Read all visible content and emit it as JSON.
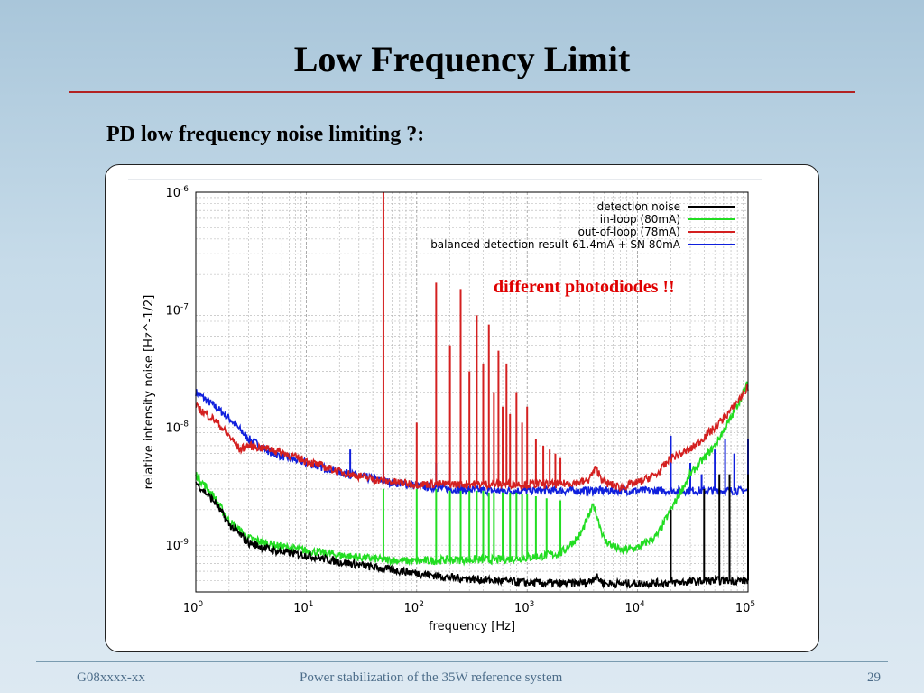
{
  "slide": {
    "title": "Low Frequency Limit",
    "subtitle": "PD low frequency noise limiting ?:",
    "annotation": "different photodiodes !!",
    "footer_left": "G08xxxx-xx",
    "footer_center": "Power stabilization of the 35W reference system",
    "footer_page": "29"
  },
  "chart_data": {
    "type": "line",
    "xlabel": "frequency [Hz]",
    "ylabel": "relative intensity noise [Hz^-1/2]",
    "x_scale": "log",
    "y_scale": "log",
    "xlim": [
      1,
      100000
    ],
    "ylim": [
      4e-10,
      1e-06
    ],
    "grid": true,
    "legend_position": "top-right",
    "x_ticks": [
      {
        "value": 1,
        "base": "10",
        "exp": "0"
      },
      {
        "value": 10,
        "base": "10",
        "exp": "1"
      },
      {
        "value": 100,
        "base": "10",
        "exp": "2"
      },
      {
        "value": 1000,
        "base": "10",
        "exp": "3"
      },
      {
        "value": 10000,
        "base": "10",
        "exp": "4"
      },
      {
        "value": 100000,
        "base": "10",
        "exp": "5"
      }
    ],
    "y_ticks": [
      {
        "value": 1e-09,
        "base": "10",
        "exp": "-9"
      },
      {
        "value": 1e-08,
        "base": "10",
        "exp": "-8"
      },
      {
        "value": 1e-07,
        "base": "10",
        "exp": "-7"
      },
      {
        "value": 1e-06,
        "base": "10",
        "exp": "-6"
      }
    ],
    "series": [
      {
        "name": "detection noise",
        "color": "#000000",
        "x": [
          1,
          1.5,
          2,
          3,
          5,
          10,
          20,
          50,
          100,
          200,
          500,
          1000,
          2000,
          3500,
          4200,
          5000,
          10000,
          20000,
          50000,
          100000
        ],
        "y": [
          3.4e-09,
          2.3e-09,
          1.5e-09,
          1.05e-09,
          9e-10,
          8.2e-10,
          7.2e-10,
          6.3e-10,
          5.8e-10,
          5.3e-10,
          5e-10,
          4.8e-10,
          4.7e-10,
          4.8e-10,
          5.4e-10,
          4.7e-10,
          4.7e-10,
          4.8e-10,
          5e-10,
          5e-10
        ],
        "peaks": [
          {
            "x": 20000,
            "y": 2e-09
          },
          {
            "x": 40000,
            "y": 3e-09
          },
          {
            "x": 55000,
            "y": 4e-09
          },
          {
            "x": 68000,
            "y": 4e-09
          },
          {
            "x": 100000,
            "y": 4e-09
          }
        ]
      },
      {
        "name": "in-loop (80mA)",
        "color": "#22dd22",
        "x": [
          1,
          1.5,
          2,
          3,
          5,
          10,
          20,
          50,
          100,
          200,
          500,
          1000,
          2000,
          3000,
          4000,
          5000,
          7000,
          10000,
          15000,
          20000,
          30000,
          50000,
          70000,
          100000
        ],
        "y": [
          4e-09,
          2.5e-09,
          1.6e-09,
          1.15e-09,
          1e-09,
          9e-10,
          8.2e-10,
          7.5e-10,
          7.3e-10,
          7.5e-10,
          7.5e-10,
          7.8e-10,
          8.5e-10,
          1.2e-09,
          2.2e-09,
          1.1e-09,
          9e-10,
          9.5e-10,
          1.2e-09,
          2e-09,
          4e-09,
          7e-09,
          1.2e-08,
          2.4e-08
        ],
        "peaks": [
          {
            "x": 50,
            "y": 3e-09
          },
          {
            "x": 100,
            "y": 3e-09
          },
          {
            "x": 150,
            "y": 3e-09
          },
          {
            "x": 200,
            "y": 2.9e-09
          },
          {
            "x": 250,
            "y": 2.9e-09
          },
          {
            "x": 300,
            "y": 2.9e-09
          },
          {
            "x": 350,
            "y": 2.9e-09
          },
          {
            "x": 400,
            "y": 2.9e-09
          },
          {
            "x": 450,
            "y": 2.8e-09
          },
          {
            "x": 500,
            "y": 2.8e-09
          },
          {
            "x": 600,
            "y": 2.8e-09
          },
          {
            "x": 700,
            "y": 2.8e-09
          },
          {
            "x": 800,
            "y": 2.8e-09
          },
          {
            "x": 900,
            "y": 2.7e-09
          },
          {
            "x": 1000,
            "y": 2.7e-09
          },
          {
            "x": 1200,
            "y": 2.6e-09
          },
          {
            "x": 1500,
            "y": 2.5e-09
          },
          {
            "x": 2000,
            "y": 2.4e-09
          }
        ]
      },
      {
        "name": "out-of-loop (78mA)",
        "color": "#d42020",
        "x": [
          1,
          1.5,
          2,
          2.5,
          3,
          5,
          10,
          20,
          50,
          100,
          200,
          500,
          1000,
          2000,
          3500,
          4200,
          5000,
          7000,
          10000,
          15000,
          20000,
          30000,
          50000,
          70000,
          100000
        ],
        "y": [
          1.5e-08,
          1.15e-08,
          8.5e-09,
          6.5e-09,
          7e-09,
          6.5e-09,
          5.2e-09,
          4.2e-09,
          3.5e-09,
          3.3e-09,
          3.3e-09,
          3.3e-09,
          3.3e-09,
          3.3e-09,
          3.5e-09,
          4.5e-09,
          3.4e-09,
          3.1e-09,
          3.4e-09,
          4e-09,
          5.5e-09,
          6.5e-09,
          1e-08,
          1.4e-08,
          2.2e-08
        ],
        "peaks": [
          {
            "x": 50,
            "y": 1e-06
          },
          {
            "x": 100,
            "y": 1.1e-08
          },
          {
            "x": 150,
            "y": 1.7e-07
          },
          {
            "x": 200,
            "y": 5e-08
          },
          {
            "x": 250,
            "y": 1.5e-07
          },
          {
            "x": 300,
            "y": 3e-08
          },
          {
            "x": 350,
            "y": 9e-08
          },
          {
            "x": 400,
            "y": 3.5e-08
          },
          {
            "x": 450,
            "y": 7.5e-08
          },
          {
            "x": 500,
            "y": 2e-08
          },
          {
            "x": 550,
            "y": 4.5e-08
          },
          {
            "x": 600,
            "y": 1.5e-08
          },
          {
            "x": 650,
            "y": 3.5e-08
          },
          {
            "x": 700,
            "y": 1.3e-08
          },
          {
            "x": 800,
            "y": 2e-08
          },
          {
            "x": 900,
            "y": 1.1e-08
          },
          {
            "x": 1000,
            "y": 1.5e-08
          },
          {
            "x": 1200,
            "y": 8e-09
          },
          {
            "x": 1400,
            "y": 7e-09
          },
          {
            "x": 1600,
            "y": 6.5e-09
          },
          {
            "x": 1800,
            "y": 6e-09
          },
          {
            "x": 2000,
            "y": 5.5e-09
          }
        ]
      },
      {
        "name": "balanced detection result 61.4mA + SN 80mA",
        "color": "#1020dd",
        "x": [
          1,
          1.5,
          2,
          3,
          5,
          10,
          20,
          50,
          100,
          200,
          500,
          1000,
          2000,
          5000,
          10000,
          20000,
          50000,
          100000
        ],
        "y": [
          2e-08,
          1.5e-08,
          1.2e-08,
          8e-09,
          6e-09,
          5e-09,
          4.2e-09,
          3.5e-09,
          3.2e-09,
          3e-09,
          2.9e-09,
          2.9e-09,
          2.9e-09,
          2.9e-09,
          2.9e-09,
          2.9e-09,
          2.9e-09,
          2.9e-09
        ],
        "peaks": [
          {
            "x": 25,
            "y": 6.5e-09
          },
          {
            "x": 50,
            "y": 6e-09
          },
          {
            "x": 150,
            "y": 5e-09
          },
          {
            "x": 20000,
            "y": 8.5e-09
          },
          {
            "x": 30000,
            "y": 5e-09
          },
          {
            "x": 38000,
            "y": 4e-09
          },
          {
            "x": 50000,
            "y": 6.5e-09
          },
          {
            "x": 62000,
            "y": 8e-09
          },
          {
            "x": 75000,
            "y": 6e-09
          },
          {
            "x": 100000,
            "y": 8e-09
          }
        ]
      }
    ]
  }
}
